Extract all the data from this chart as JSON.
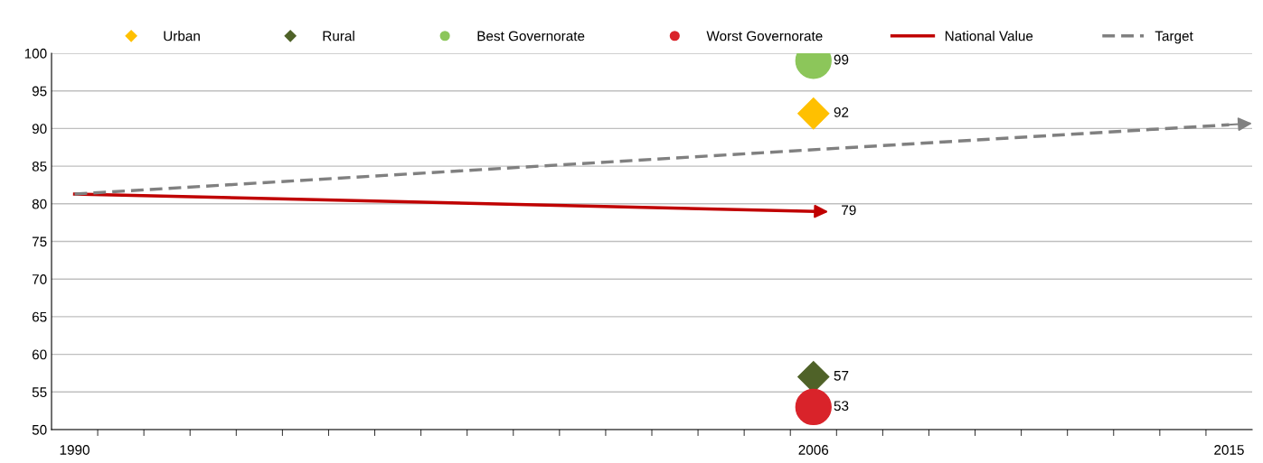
{
  "chart_data": {
    "type": "scatter",
    "xlim": [
      1989.5,
      2015.5
    ],
    "xticks": [
      {
        "value": 1990,
        "label": "1990"
      },
      {
        "value": 2006,
        "label": "2006"
      },
      {
        "value": 2015,
        "label": "2015"
      },
      {
        "value": 1990.5,
        "label": null
      },
      {
        "value": 1991.5,
        "label": null
      },
      {
        "value": 1992.5,
        "label": null
      },
      {
        "value": 1993.5,
        "label": null
      },
      {
        "value": 1994.5,
        "label": null
      },
      {
        "value": 1995.5,
        "label": null
      },
      {
        "value": 1996.5,
        "label": null
      },
      {
        "value": 1997.5,
        "label": null
      },
      {
        "value": 1998.5,
        "label": null
      },
      {
        "value": 1999.5,
        "label": null
      },
      {
        "value": 2000.5,
        "label": null
      },
      {
        "value": 2001.5,
        "label": null
      },
      {
        "value": 2002.5,
        "label": null
      },
      {
        "value": 2003.5,
        "label": null
      },
      {
        "value": 2004.5,
        "label": null
      },
      {
        "value": 2005.5,
        "label": null
      },
      {
        "value": 2006.5,
        "label": null
      },
      {
        "value": 2007.5,
        "label": null
      },
      {
        "value": 2008.5,
        "label": null
      },
      {
        "value": 2009.5,
        "label": null
      },
      {
        "value": 2010.5,
        "label": null
      },
      {
        "value": 2011.5,
        "label": null
      },
      {
        "value": 2012.5,
        "label": null
      },
      {
        "value": 2013.5,
        "label": null
      },
      {
        "value": 2014.5,
        "label": null
      }
    ],
    "ylim": [
      50,
      100
    ],
    "yticks": [
      50,
      55,
      60,
      65,
      70,
      75,
      80,
      85,
      90,
      95,
      100
    ],
    "grid": "y",
    "legend": "top",
    "series": [
      {
        "name": "Urban",
        "marker": "diamond",
        "color": "#ffc000",
        "x": [
          2006
        ],
        "values": [
          92
        ],
        "value_labels": [
          "92"
        ]
      },
      {
        "name": "Rural",
        "marker": "diamond",
        "color": "#4f6228",
        "x": [
          2006
        ],
        "values": [
          57
        ],
        "value_labels": [
          "57"
        ]
      },
      {
        "name": "Best Governorate",
        "marker": "circle",
        "color": "#8cc65a",
        "x": [
          2006
        ],
        "values": [
          99
        ],
        "value_labels": [
          "99"
        ]
      },
      {
        "name": "Worst Governorate",
        "marker": "circle",
        "color": "#d9232a",
        "x": [
          2006
        ],
        "values": [
          53
        ],
        "value_labels": [
          "53"
        ]
      },
      {
        "name": "National Value",
        "type": "line",
        "line_style": "solid",
        "color": "#c00000",
        "x": [
          1990,
          2006
        ],
        "values": [
          81.3,
          79
        ],
        "value_labels": [
          null,
          "79"
        ]
      },
      {
        "name": "Target",
        "type": "line",
        "line_style": "dashed",
        "color": "#808080",
        "x": [
          1990,
          2015
        ],
        "values": [
          81.3,
          90.5
        ]
      }
    ]
  }
}
